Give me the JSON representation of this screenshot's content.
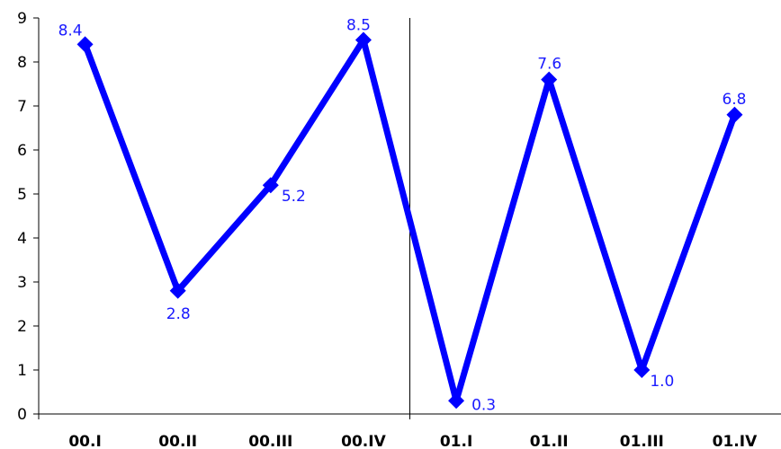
{
  "chart_data": {
    "type": "line",
    "categories": [
      "00.I",
      "00.II",
      "00.III",
      "00.IV",
      "01.I",
      "01.II",
      "01.III",
      "01.IV"
    ],
    "series": [
      {
        "values": [
          8.4,
          2.8,
          5.2,
          8.5,
          0.3,
          7.6,
          1.0,
          6.8
        ]
      }
    ],
    "data_labels": [
      "8.4",
      "2.8",
      "5.2",
      "8.5",
      "0.3",
      "7.6",
      "1.0",
      "6.8"
    ],
    "yticks": [
      "0",
      "1",
      "2",
      "3",
      "4",
      "5",
      "6",
      "7",
      "8",
      "9"
    ],
    "ylim": [
      0,
      9
    ],
    "grid": false,
    "title": "",
    "xlabel": "",
    "ylabel": "",
    "colors": {
      "series": "#0000ff",
      "label": "#1a1aff",
      "axis": "#000000"
    },
    "marker": "diamond"
  }
}
